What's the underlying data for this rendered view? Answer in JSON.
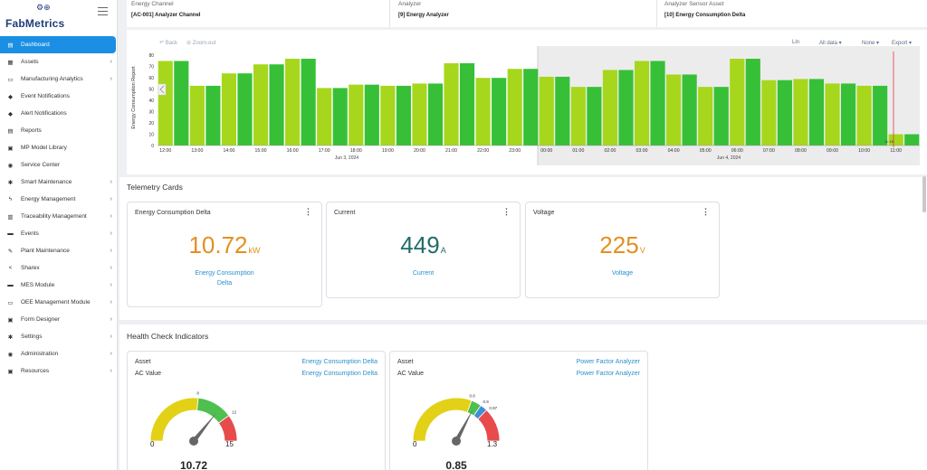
{
  "app": {
    "logo_text": "FabMetrics"
  },
  "sidebar": {
    "items": [
      {
        "label": "Dashboard",
        "icon": "dashboard-icon",
        "glyph": "▤",
        "chevron": false,
        "active": true
      },
      {
        "label": "Assets",
        "icon": "assets-icon",
        "glyph": "▦",
        "chevron": true
      },
      {
        "label": "Manufacturing Analytics",
        "icon": "monitor-icon",
        "glyph": "▭",
        "chevron": true
      },
      {
        "label": "Event Notifications",
        "icon": "bell-icon",
        "glyph": "◆",
        "chevron": false
      },
      {
        "label": "Alert Notifications",
        "icon": "bell-icon",
        "glyph": "◆",
        "chevron": false
      },
      {
        "label": "Reports",
        "icon": "reports-icon",
        "glyph": "▤",
        "chevron": false
      },
      {
        "label": "MP Model Library",
        "icon": "library-icon",
        "glyph": "▣",
        "chevron": false
      },
      {
        "label": "Service Center",
        "icon": "service-icon",
        "glyph": "◉",
        "chevron": false
      },
      {
        "label": "Smart Maintenance",
        "icon": "gear-icon",
        "glyph": "✱",
        "chevron": true
      },
      {
        "label": "Energy Management",
        "icon": "bolt-icon",
        "glyph": "ϟ",
        "chevron": true
      },
      {
        "label": "Traceability Management",
        "icon": "traceability-icon",
        "glyph": "▥",
        "chevron": true
      },
      {
        "label": "Events",
        "icon": "events-icon",
        "glyph": "▬",
        "chevron": true
      },
      {
        "label": "Plant Maintenance",
        "icon": "wrench-icon",
        "glyph": "✎",
        "chevron": true
      },
      {
        "label": "Sharex",
        "icon": "share-icon",
        "glyph": "<",
        "chevron": true
      },
      {
        "label": "MES Module",
        "icon": "mes-icon",
        "glyph": "▬",
        "chevron": true
      },
      {
        "label": "OEE Management Module",
        "icon": "oee-icon",
        "glyph": "▭",
        "chevron": true
      },
      {
        "label": "Form Designer",
        "icon": "form-icon",
        "glyph": "▣",
        "chevron": true
      },
      {
        "label": "Settings",
        "icon": "settings-icon",
        "glyph": "✱",
        "chevron": true
      },
      {
        "label": "Administration",
        "icon": "admin-icon",
        "glyph": "◉",
        "chevron": true
      },
      {
        "label": "Resources",
        "icon": "resources-icon",
        "glyph": "▣",
        "chevron": true
      }
    ]
  },
  "filters": [
    {
      "label": "Energy Channel",
      "value": "[AC-001] Analyzer Channel"
    },
    {
      "label": "Analyzer",
      "value": "[9] Energy Analyzer"
    },
    {
      "label": "Analyzer Sensor Asset",
      "value": "[10] Energy Consumption Delta"
    }
  ],
  "chart_toolbar": {
    "back": "↶ Back",
    "zoom_out": "⊖ Zoom-out",
    "lin": "Lin",
    "all_data": "All data ▾",
    "none": "None ▾",
    "export": "Export ▾"
  },
  "chart_data": {
    "type": "bar",
    "ylabel": "Energy Consumption Report",
    "ylim": [
      0,
      85
    ],
    "yticks": [
      0,
      10,
      20,
      30,
      40,
      50,
      60,
      70,
      80
    ],
    "x_ticks": [
      "12:00",
      "13:00",
      "14:00",
      "15:00",
      "16:00",
      "17:00",
      "18:00",
      "19:00",
      "20:00",
      "21:00",
      "22:00",
      "23:00",
      "00:00",
      "01:00",
      "02:00",
      "03:00",
      "04:00",
      "05:00",
      "06:00",
      "07:00",
      "08:00",
      "09:00",
      "10:00",
      "11:00"
    ],
    "date_labels": [
      "Jun 3, 2024",
      "Jun 4, 2024"
    ],
    "colors": {
      "light": "#a6d71c",
      "dark": "#37c037"
    },
    "values": [
      75,
      75,
      53,
      53,
      64,
      64,
      72,
      72,
      77,
      77,
      51,
      51,
      54,
      54,
      53,
      53,
      55,
      55,
      73,
      73,
      60,
      60,
      68,
      68,
      61,
      61,
      52,
      52,
      67,
      67,
      75,
      75,
      63,
      63,
      52,
      52,
      77,
      77,
      58,
      58,
      59,
      59,
      55,
      55,
      53,
      53,
      10,
      10
    ],
    "marker_label": "11:15"
  },
  "telemetry": {
    "title": "Telemetry Cards",
    "cards": [
      {
        "title": "Energy Consumption Delta",
        "value": "10.72",
        "unit": "kW",
        "label_line1": "Energy Consumption",
        "label_line2": "Delta",
        "color": "#e2901f"
      },
      {
        "title": "Current",
        "value": "449",
        "unit": "A",
        "label_line1": "Current",
        "label_line2": "",
        "color": "#1f6d69"
      },
      {
        "title": "Voltage",
        "value": "225",
        "unit": "V",
        "label_line1": "Voltage",
        "label_line2": "",
        "color": "#e2901f"
      }
    ]
  },
  "health": {
    "title": "Health Check Indicators",
    "cards": [
      {
        "asset_label": "Asset",
        "asset_value": "Energy Consumption Delta",
        "ac_label": "AC Value",
        "ac_value": "Energy Consumption Delta",
        "min": "0",
        "max": "15",
        "t1": "8",
        "t2": "12",
        "value": "10.72",
        "ratio": 0.7147
      },
      {
        "asset_label": "Asset",
        "asset_value": "Power Factor Analyzer",
        "ac_label": "AC Value",
        "ac_value": "Power Factor Analyzer",
        "min": "0",
        "max": "1.3",
        "t1": "0.8",
        "t2": "0.9",
        "t3": "0.97",
        "value": "0.85",
        "ratio": 0.6538
      }
    ]
  }
}
